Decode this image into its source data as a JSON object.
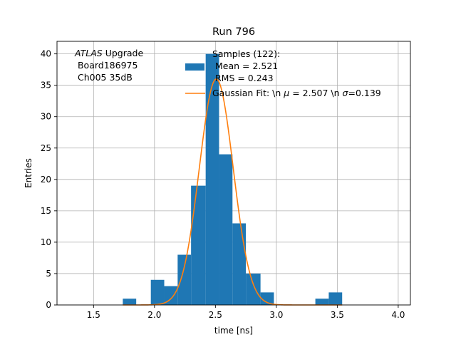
{
  "chart_data": {
    "type": "bar",
    "title": "Run 796",
    "xlabel": "time [ns]",
    "ylabel": "Entries",
    "xlim": [
      1.2,
      4.1
    ],
    "ylim": [
      0,
      42
    ],
    "xticks": [
      1.5,
      2.0,
      2.5,
      3.0,
      3.5,
      4.0
    ],
    "xtick_labels": [
      "1.5",
      "2.0",
      "2.5",
      "3.0",
      "3.5",
      "4.0"
    ],
    "yticks": [
      0,
      5,
      10,
      15,
      20,
      25,
      30,
      35,
      40
    ],
    "ytick_labels": [
      "0",
      "5",
      "10",
      "15",
      "20",
      "25",
      "30",
      "35",
      "40"
    ],
    "grid": true,
    "legend_position": "top-right",
    "bar_color": "#1f77b4",
    "fit_color": "#ff7f0e",
    "bins": [
      {
        "x0": 1.74,
        "x1": 1.85,
        "count": 1
      },
      {
        "x0": 1.85,
        "x1": 1.97,
        "count": 0
      },
      {
        "x0": 1.97,
        "x1": 2.08,
        "count": 4
      },
      {
        "x0": 2.08,
        "x1": 2.19,
        "count": 3
      },
      {
        "x0": 2.19,
        "x1": 2.3,
        "count": 8
      },
      {
        "x0": 2.3,
        "x1": 2.42,
        "count": 19
      },
      {
        "x0": 2.42,
        "x1": 2.53,
        "count": 40
      },
      {
        "x0": 2.53,
        "x1": 2.64,
        "count": 24
      },
      {
        "x0": 2.64,
        "x1": 2.75,
        "count": 13
      },
      {
        "x0": 2.75,
        "x1": 2.87,
        "count": 5
      },
      {
        "x0": 2.87,
        "x1": 2.98,
        "count": 2
      },
      {
        "x0": 2.98,
        "x1": 3.09,
        "count": 0
      },
      {
        "x0": 3.09,
        "x1": 3.2,
        "count": 0
      },
      {
        "x0": 3.2,
        "x1": 3.32,
        "count": 0
      },
      {
        "x0": 3.32,
        "x1": 3.43,
        "count": 1
      },
      {
        "x0": 3.43,
        "x1": 3.54,
        "count": 2
      }
    ],
    "fit": {
      "type": "gaussian",
      "mu": 2.507,
      "sigma": 0.139,
      "amplitude": 36
    },
    "legend": {
      "hist_label_lines": [
        "Samples (122):",
        " Mean = 2.521",
        " RMS = 0.243"
      ],
      "fit_label_prefix": "Gaussian Fit: \\n ",
      "fit_label_mu": " = 2.507 \\n ",
      "fit_label_sigma": "=0.139"
    },
    "annotation": {
      "experiment": "ATLAS",
      "line1_rest": " Upgrade",
      "line2": " Board186975",
      "line3": " Ch005 35dB"
    }
  }
}
